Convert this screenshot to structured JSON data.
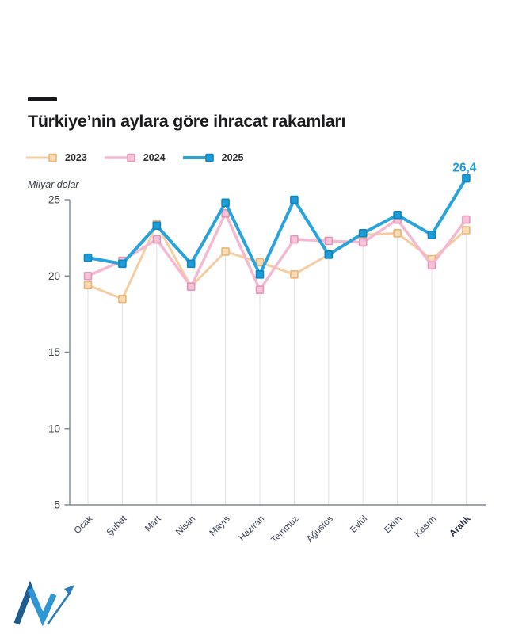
{
  "header": {
    "title": "Türkiye’nin aylara göre ihracat rakamları"
  },
  "chart_data": {
    "type": "line",
    "title": "Türkiye’nin aylara göre ihracat rakamları",
    "ylabel": "Milyar dolar",
    "categories": [
      "Ocak",
      "Şubat",
      "Mart",
      "Nisan",
      "Mayıs",
      "Haziran",
      "Temmuz",
      "Ağustos",
      "Eylül",
      "Ekim",
      "Kasım",
      "Aralık"
    ],
    "series": [
      {
        "name": "2023",
        "line_color": "#F6CDA0",
        "marker_fill": "#F9DCB4",
        "marker_stroke": "#EDB476",
        "line_width": 3,
        "values": [
          19.4,
          18.5,
          23.4,
          19.3,
          21.6,
          20.9,
          20.1,
          21.4,
          22.7,
          22.8,
          21.1,
          23.0
        ]
      },
      {
        "name": "2024",
        "line_color": "#F4B9D1",
        "marker_fill": "#F5C3D8",
        "marker_stroke": "#E795BB",
        "line_width": 3.5,
        "values": [
          20.0,
          21.0,
          22.4,
          19.3,
          24.1,
          19.1,
          22.4,
          22.3,
          22.2,
          23.7,
          20.7,
          23.7
        ]
      },
      {
        "name": "2025",
        "line_color": "#29A3DC",
        "marker_fill": "#1E9CD8",
        "marker_stroke": "#0F85BE",
        "line_width": 4,
        "values": [
          21.2,
          20.8,
          23.3,
          20.8,
          24.8,
          20.1,
          25.0,
          21.4,
          22.8,
          24.0,
          22.7,
          26.4
        ]
      }
    ],
    "yticks": [
      5,
      10,
      15,
      20,
      25
    ],
    "ylim": [
      5,
      26.5
    ],
    "grid": "vertical-stems",
    "legend_position": "top-left",
    "highlight_category": "Aralık",
    "annotation": {
      "text": "26,4",
      "series": "2025",
      "category": "Aralık",
      "color": "#1E9CD8"
    },
    "axis_color": "#7E8794",
    "tick_label_color": "#3C4043",
    "category_label_color": "#3A4254",
    "grid_color": "#E5E5E7"
  }
}
